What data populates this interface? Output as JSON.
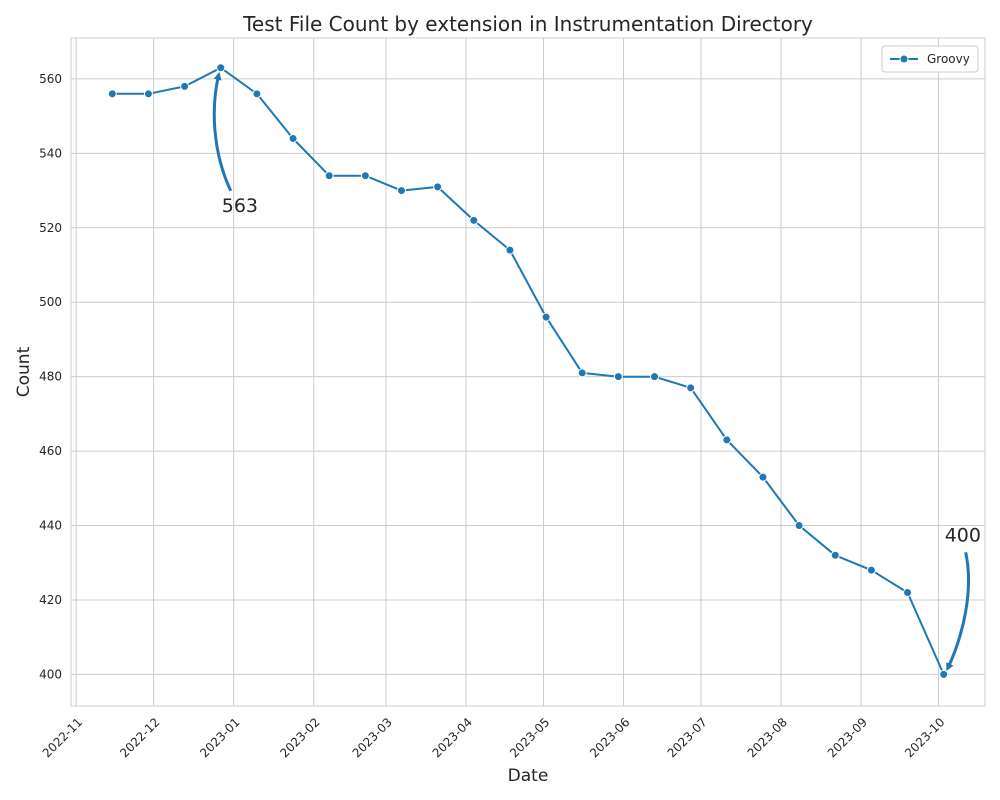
{
  "chart_data": {
    "type": "line",
    "title": "Test File Count by extension in Instrumentation Directory",
    "xlabel": "Date",
    "ylabel": "Count",
    "grid": true,
    "legend_position": "top-right",
    "color": "#1f77b4",
    "xlim": [
      "2022-10-30",
      "2023-10-19"
    ],
    "ylim": [
      391.5,
      571
    ],
    "x_ticks": [
      "2022-11-01",
      "2022-12-01",
      "2023-01-01",
      "2023-02-01",
      "2023-03-01",
      "2023-04-01",
      "2023-05-01",
      "2023-06-01",
      "2023-07-01",
      "2023-08-01",
      "2023-09-01",
      "2023-10-01"
    ],
    "x_tick_labels": [
      "2022-11",
      "2022-12",
      "2023-01",
      "2023-02",
      "2023-03",
      "2023-04",
      "2023-05",
      "2023-06",
      "2023-07",
      "2023-08",
      "2023-09",
      "2023-10"
    ],
    "y_ticks": [
      400,
      420,
      440,
      460,
      480,
      500,
      520,
      540,
      560
    ],
    "y_tick_labels": [
      "400",
      "420",
      "440",
      "460",
      "480",
      "500",
      "520",
      "540",
      "560"
    ],
    "series": [
      {
        "name": "Groovy",
        "x": [
          "2022-11-15",
          "2022-11-29",
          "2022-12-13",
          "2022-12-27",
          "2023-01-10",
          "2023-01-24",
          "2023-02-07",
          "2023-02-21",
          "2023-03-07",
          "2023-03-21",
          "2023-04-04",
          "2023-04-18",
          "2023-05-02",
          "2023-05-16",
          "2023-05-30",
          "2023-06-13",
          "2023-06-27",
          "2023-07-11",
          "2023-07-25",
          "2023-08-08",
          "2023-08-22",
          "2023-09-05",
          "2023-09-19",
          "2023-10-03"
        ],
        "values": [
          556,
          556,
          558,
          563,
          556,
          544,
          534,
          534,
          530,
          531,
          522,
          514,
          496,
          481,
          480,
          480,
          477,
          463,
          453,
          440,
          432,
          428,
          422,
          400
        ]
      }
    ],
    "annotations": [
      {
        "text": "563",
        "x": "2022-12-27",
        "y": 563
      },
      {
        "text": "400",
        "x": "2023-10-03",
        "y": 400
      }
    ]
  }
}
